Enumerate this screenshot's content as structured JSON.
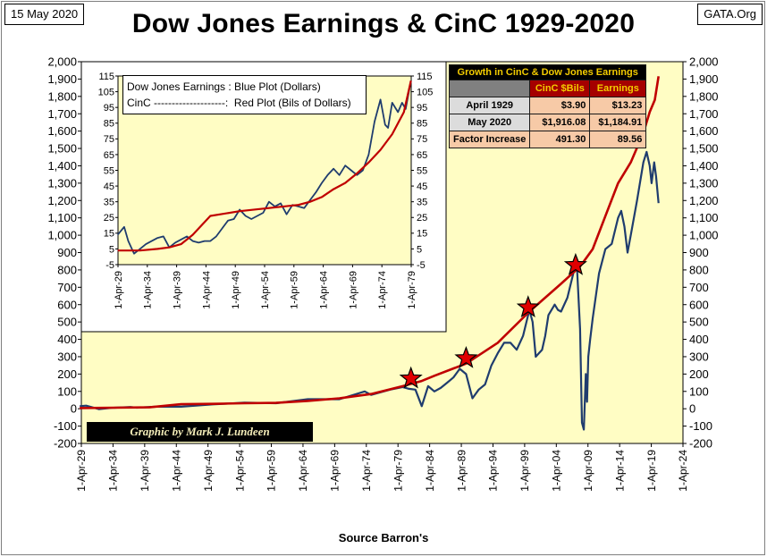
{
  "header": {
    "date": "15 May 2020",
    "title": "Dow Jones Earnings & CinC 1929-2020",
    "brand": "GATA.Org"
  },
  "footer": {
    "source": "Source Barron's",
    "credit": "Graphic by Mark J. Lundeen"
  },
  "colors": {
    "earnings_line": "#1f3c6e",
    "cinc_line": "#c00000",
    "plot_bg": "#fffdc4",
    "star": "#e00000"
  },
  "growth_table": {
    "title": "Growth in CinC & Dow Jones Earnings",
    "headers": [
      "",
      "CinC $Bils",
      "Earnings"
    ],
    "rows": [
      {
        "label": "April 1929",
        "cinc": "$3.90",
        "earnings": "$13.23"
      },
      {
        "label": "May 2020",
        "cinc": "$1,916.08",
        "earnings": "$1,184.91"
      },
      {
        "label": "Factor Increase",
        "cinc": "491.30",
        "earnings": "89.56"
      }
    ]
  },
  "inset_legend": {
    "line1": "Dow Jones Earnings : Blue Plot (Dollars)",
    "line2": "CinC --------------------:  Red Plot (Bils of Dollars)"
  },
  "chart_data": [
    {
      "id": "main",
      "type": "line",
      "ylim": [
        -200,
        2000
      ],
      "y_ticks": [
        -200,
        -100,
        0,
        100,
        200,
        300,
        400,
        500,
        600,
        700,
        800,
        900,
        1000,
        1100,
        1200,
        1300,
        1400,
        1500,
        1600,
        1700,
        1800,
        1900,
        2000
      ],
      "y_tick_labels": [
        "-200",
        "-100",
        "0",
        "100",
        "200",
        "300",
        "400",
        "500",
        "600",
        "700",
        "800",
        "900",
        "1,000",
        "1,100",
        "1,200",
        "1,300",
        "1,400",
        "1,500",
        "1,600",
        "1,700",
        "1,800",
        "1,900",
        "2,000"
      ],
      "x_tick_labels": [
        "1-Apr-29",
        "1-Apr-34",
        "1-Apr-39",
        "1-Apr-44",
        "1-Apr-49",
        "1-Apr-54",
        "1-Apr-59",
        "1-Apr-64",
        "1-Apr-69",
        "1-Apr-74",
        "1-Apr-79",
        "1-Apr-84",
        "1-Apr-89",
        "1-Apr-94",
        "1-Apr-99",
        "1-Apr-04",
        "1-Apr-09",
        "1-Apr-14",
        "1-Apr-19",
        "1-Apr-24"
      ],
      "xlim": [
        1929.25,
        2024.25
      ],
      "grid": false,
      "series": [
        {
          "name": "Dow Jones Earnings",
          "color": "#1f3c6e",
          "x": [
            1929,
            1930,
            1932,
            1934,
            1937,
            1938,
            1941,
            1945,
            1950,
            1955,
            1960,
            1965,
            1970,
            1974,
            1975,
            1978,
            1980,
            1981,
            1982,
            1983,
            1984,
            1985,
            1986,
            1987,
            1988,
            1989,
            1990,
            1991,
            1992,
            1993,
            1994,
            1995,
            1996,
            1997,
            1998,
            1999,
            2000,
            2000.5,
            2001,
            2001.5,
            2002,
            2002.5,
            2003,
            2004,
            2004.5,
            2005,
            2006,
            2007,
            2007.5,
            2008,
            2008.3,
            2008.6,
            2008.9,
            2009.1,
            2009.3,
            2009.6,
            2010,
            2011,
            2012,
            2013,
            2014,
            2014.5,
            2015,
            2015.5,
            2016,
            2016.5,
            2017,
            2018,
            2018.5,
            2019,
            2019.3,
            2019.7,
            2020,
            2020.4
          ],
          "y": [
            15,
            18,
            -2,
            5,
            10,
            6,
            12,
            12,
            25,
            35,
            32,
            55,
            55,
            100,
            80,
            110,
            125,
            115,
            110,
            15,
            130,
            100,
            120,
            150,
            180,
            230,
            200,
            60,
            110,
            140,
            250,
            320,
            380,
            380,
            340,
            420,
            570,
            500,
            300,
            320,
            340,
            420,
            540,
            600,
            570,
            560,
            640,
            790,
            830,
            460,
            -80,
            -120,
            200,
            40,
            300,
            400,
            520,
            780,
            920,
            950,
            1100,
            1140,
            1050,
            900,
            1000,
            1100,
            1200,
            1420,
            1480,
            1400,
            1300,
            1420,
            1340,
            1185
          ]
        },
        {
          "name": "CinC",
          "color": "#c00000",
          "x": [
            1929,
            1940,
            1945,
            1950,
            1955,
            1960,
            1965,
            1970,
            1975,
            1980,
            1983,
            1985,
            1990,
            1995,
            2000,
            2005,
            2008,
            2009,
            2010,
            2012,
            2014,
            2016,
            2018,
            2019,
            2019.8,
            2020.4
          ],
          "y": [
            4,
            8,
            26,
            28,
            32,
            34,
            45,
            60,
            85,
            130,
            160,
            190,
            260,
            380,
            560,
            720,
            820,
            870,
            920,
            1110,
            1300,
            1420,
            1590,
            1710,
            1780,
            1916
          ]
        }
      ],
      "stars_x": [
        1981.3,
        1990,
        1999.8,
        2007.3
      ]
    },
    {
      "id": "inset",
      "type": "line",
      "ylim": [
        -5,
        115
      ],
      "y_ticks": [
        -5,
        5,
        15,
        25,
        35,
        45,
        55,
        65,
        75,
        85,
        95,
        105,
        115
      ],
      "y_tick_labels": [
        "-5",
        "5",
        "15",
        "25",
        "35",
        "45",
        "55",
        "65",
        "75",
        "85",
        "95",
        "105",
        "115"
      ],
      "x_tick_labels": [
        "1-Apr-29",
        "1-Apr-34",
        "1-Apr-39",
        "1-Apr-44",
        "1-Apr-49",
        "1-Apr-54",
        "1-Apr-59",
        "1-Apr-64",
        "1-Apr-69",
        "1-Apr-74",
        "1-Apr-79"
      ],
      "xlim": [
        1929.25,
        1979.25
      ],
      "grid": false,
      "series": [
        {
          "name": "Dow Jones Earnings",
          "color": "#1f3c6e",
          "x": [
            1929.2,
            1930.3,
            1931,
            1932,
            1933,
            1934,
            1935,
            1936,
            1937,
            1938,
            1939,
            1940,
            1941,
            1942,
            1943,
            1944,
            1945,
            1946,
            1947,
            1948,
            1949,
            1950,
            1951,
            1952,
            1953,
            1954,
            1955,
            1956,
            1957,
            1958,
            1959,
            1960,
            1961,
            1962,
            1963,
            1964,
            1965,
            1966,
            1967,
            1968,
            1969,
            1970,
            1971,
            1972,
            1973,
            1974,
            1974.8,
            1975.3,
            1976,
            1977,
            1977.7,
            1978.3,
            1979.2
          ],
          "y": [
            14,
            19,
            10,
            2,
            5,
            8,
            10,
            12,
            13,
            6,
            9,
            11,
            13,
            10,
            9,
            10,
            10,
            13,
            18,
            23,
            24,
            30,
            26,
            24,
            26,
            28,
            35,
            32,
            34,
            27,
            33,
            32,
            31,
            36,
            41,
            47,
            52,
            56,
            52,
            58,
            55,
            52,
            55,
            65,
            86,
            100,
            84,
            82,
            98,
            92,
            98,
            94,
            112
          ]
        },
        {
          "name": "CinC",
          "color": "#c00000",
          "x": [
            1929.2,
            1933,
            1936,
            1938,
            1940,
            1942,
            1943.5,
            1945,
            1950,
            1955,
            1960,
            1962,
            1964,
            1966,
            1968,
            1970,
            1972,
            1974,
            1976,
            1978,
            1979.2
          ],
          "y": [
            4,
            4,
            5,
            6,
            8,
            14,
            20,
            26,
            29,
            31,
            33,
            35,
            38,
            43,
            47,
            53,
            60,
            68,
            78,
            92,
            112
          ]
        }
      ]
    }
  ]
}
